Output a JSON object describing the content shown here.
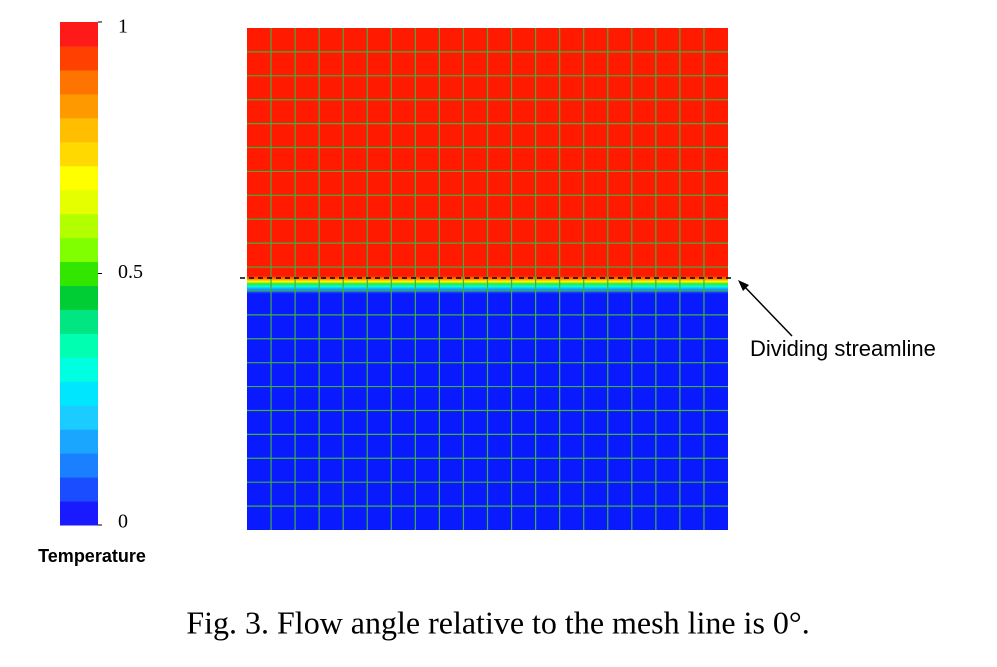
{
  "figure": {
    "colorbar": {
      "label": "Temperature",
      "lim": [
        0,
        1
      ],
      "ticks": [
        0,
        0.5,
        1
      ],
      "colors": [
        "#1a1aff",
        "#1a4dff",
        "#1a80ff",
        "#1aa6ff",
        "#1accff",
        "#00e6ff",
        "#00ffe0",
        "#00ffb0",
        "#00e680",
        "#00cc33",
        "#33e600",
        "#80ff00",
        "#b3ff00",
        "#e6ff00",
        "#ffff00",
        "#ffd900",
        "#ffbf00",
        "#ff9900",
        "#ff7300",
        "#ff4000",
        "#ff1a1a"
      ]
    },
    "annotation": "Dividing streamline",
    "caption": "Fig. 3. Flow angle relative to the mesh line is 0°."
  }
}
